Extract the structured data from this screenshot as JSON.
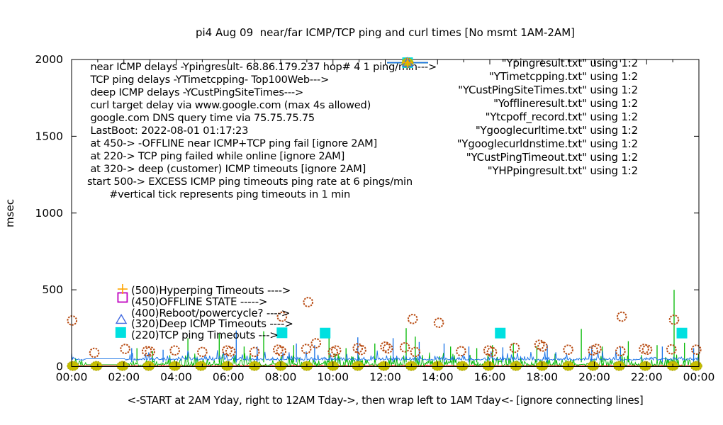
{
  "title": "pi4 Aug 09  near/far ICMP/TCP ping and curl times [No msmt 1AM-2AM]",
  "ylabel": "msec",
  "xlabel": "<-START at 2AM Yday, right to 12AM Tday->, then wrap left to 1AM Tday<- [ignore connecting lines]",
  "annotations": {
    "lines": [
      " near ICMP delays -Ypingresult- 68.86.179.237 hop# 4 1 ping/min--->",
      " TCP ping delays -YTimetcpping- Top100Web--->",
      " deep ICMP delays -YCustPingSiteTimes--->",
      " curl target delay via www.google.com (max 4s allowed)",
      " google.com DNS query time via 75.75.75.75",
      " LastBoot: 2022-08-01 01:17:23",
      " at 450-> -OFFLINE near ICMP+TCP ping fail [ignore 2AM]",
      " at 220-> TCP ping failed while online [ignore 2AM]",
      " at 320-> deep (customer) ICMP timeouts [ignore 2AM]",
      "start 500-> EXCESS ICMP ping timeouts ping rate at 6 pings/min",
      "       #vertical tick represents ping timeouts in 1 min"
    ]
  },
  "legend": {
    "entries": [
      {
        "label": "\"Ypingresult.txt\" using 1:2",
        "sample": "line",
        "color": "#ff0000"
      },
      {
        "label": "\"YTimetcpping.txt\" using 1:2",
        "sample": "line",
        "color": "#00b800"
      },
      {
        "label": "\"YCustPingSiteTimes.txt\" using 1:2",
        "sample": "line",
        "color": "#1470e6"
      },
      {
        "label": "\"Yofflineresult.txt\" using 1:2",
        "sample": "square-open",
        "color": "#bf00bf"
      },
      {
        "label": "\"Ytcpoff_record.txt\" using 1:2",
        "sample": "square-filled",
        "color": "#00e0e0"
      },
      {
        "label": "\"Ygooglecurltime.txt\" using 1:2",
        "sample": "circle-open",
        "color": "#b84a10"
      },
      {
        "label": "\"Ygooglecurldnstime.txt\" using 1:2",
        "sample": "circle-filled",
        "color": "#c6be00"
      },
      {
        "label": "\"YCustPingTimeout.txt\" using 1:2",
        "sample": "triangle-open",
        "color": "#4169e1"
      },
      {
        "label": "\"YHPpingresult.txt\" using 1:2",
        "sample": "plus",
        "color": "#ffa500"
      }
    ]
  },
  "plot_annotations": [
    {
      "text": "(500)Hyperping Timeouts ---->",
      "marker_value": 500,
      "marker": "plus",
      "color": "#ffa500"
    },
    {
      "text": "(450)OFFLINE STATE ----->",
      "marker_value": 450,
      "marker": "square-open",
      "color": "#bf00bf"
    },
    {
      "text": "(400)Reboot/powercycle? ---->",
      "marker_value": 400,
      "marker": "none",
      "color": "#000000"
    },
    {
      "text": "(320)Deep ICMP Timeouts ---->",
      "marker_value": 320,
      "marker": "triangle-open",
      "color": "#4169e1"
    },
    {
      "text": "(220)TCP ping Timeouts --->",
      "marker_value": 220,
      "marker": "square-filled",
      "color": "#00e0e0"
    }
  ],
  "chart_data": {
    "type": "line",
    "title": "pi4 Aug 09  near/far ICMP/TCP ping and curl times [No msmt 1AM-2AM]",
    "xlabel": "<-START at 2AM Yday, right to 12AM Tday->, then wrap left to 1AM Tday<- [ignore connecting lines]",
    "ylabel": "msec",
    "x_unit": "hours",
    "x_range": [
      0,
      24
    ],
    "ylim": [
      0,
      2000
    ],
    "x_ticks": [
      "00:00",
      "02:00",
      "04:00",
      "06:00",
      "08:00",
      "10:00",
      "12:00",
      "14:00",
      "16:00",
      "18:00",
      "20:00",
      "22:00",
      "00:00"
    ],
    "y_ticks": [
      0,
      500,
      1000,
      1500,
      2000
    ],
    "grid": false,
    "legend_position": "top-right",
    "no_measurement_gap_hours": [
      0.55,
      2.05
    ],
    "series": [
      {
        "name": "Ypingresult.txt",
        "role": "near ICMP ping delay",
        "style": "line",
        "color": "#ff0000",
        "noise": {
          "seed": 11,
          "base": 3,
          "jitter": 8,
          "tall_chance": 0,
          "tall_amp": 0
        },
        "gap_level": 8,
        "spikes": []
      },
      {
        "name": "YTimetcpping.txt",
        "role": "TCP ping delay Top100Web",
        "style": "line",
        "color": "#00b800",
        "noise": {
          "seed": 23,
          "base": 1,
          "jitter": 46,
          "tall_chance": 0.12,
          "tall_amp": 70
        },
        "gap_level": 12,
        "spikes": [
          [
            2.5,
            120
          ],
          [
            3.1,
            100
          ],
          [
            4.45,
            185
          ],
          [
            5.65,
            215
          ],
          [
            6.6,
            130
          ],
          [
            7.35,
            230
          ],
          [
            8.5,
            140
          ],
          [
            9.85,
            205
          ],
          [
            10.5,
            120
          ],
          [
            11.6,
            150
          ],
          [
            12.8,
            250
          ],
          [
            13.15,
            195
          ],
          [
            14.5,
            130
          ],
          [
            15.5,
            120
          ],
          [
            16.1,
            140
          ],
          [
            16.9,
            155
          ],
          [
            17.8,
            130
          ],
          [
            19.5,
            245
          ],
          [
            20.3,
            130
          ],
          [
            21.3,
            165
          ],
          [
            22.4,
            140
          ],
          [
            23.05,
            500
          ],
          [
            23.45,
            155
          ]
        ]
      },
      {
        "name": "YCustPingSiteTimes.txt",
        "role": "deep ICMP ping delay",
        "style": "line",
        "color": "#1470e6",
        "noise": {
          "seed": 37,
          "base": 41,
          "jitter": 20,
          "tall_chance": 0.09,
          "tall_amp": 55
        },
        "gap_level": 51,
        "spikes": [
          [
            2.3,
            120
          ],
          [
            3.5,
            110
          ],
          [
            6.3,
            235
          ],
          [
            7.1,
            130
          ],
          [
            8.6,
            150
          ],
          [
            9.3,
            140
          ],
          [
            10.95,
            190
          ],
          [
            12.3,
            185
          ],
          [
            13.3,
            160
          ],
          [
            14.25,
            150
          ],
          [
            15.2,
            130
          ],
          [
            16.5,
            125
          ],
          [
            18.2,
            140
          ],
          [
            19.9,
            130
          ],
          [
            21.0,
            125
          ],
          [
            22.6,
            130
          ],
          [
            23.8,
            120
          ]
        ]
      },
      {
        "name": "Yofflineresult.txt",
        "role": "offline state marker (450)",
        "style": "points",
        "marker": "square-open",
        "color": "#bf00bf",
        "points": [
          [
            1.95,
            450
          ]
        ]
      },
      {
        "name": "Ytcpoff_record.txt",
        "role": "TCP ping failed while online (220)",
        "style": "points",
        "marker": "square-filled",
        "color": "#00e0e0",
        "points": [
          [
            1.88,
            222
          ],
          [
            8.05,
            220
          ],
          [
            9.7,
            218
          ],
          [
            16.4,
            218
          ],
          [
            23.35,
            218
          ]
        ]
      },
      {
        "name": "Ygooglecurltime.txt",
        "role": "curl time to www.google.com",
        "style": "points",
        "marker": "circle-open",
        "color": "#b84a10",
        "points": [
          [
            0.02,
            300
          ],
          [
            0.87,
            90
          ],
          [
            2.05,
            115
          ],
          [
            2.88,
            100
          ],
          [
            3.0,
            98
          ],
          [
            3.95,
            105
          ],
          [
            5.0,
            95
          ],
          [
            5.95,
            105
          ],
          [
            6.08,
            98
          ],
          [
            7.0,
            95
          ],
          [
            7.9,
            110
          ],
          [
            8.02,
            100
          ],
          [
            8.05,
            325
          ],
          [
            8.98,
            115
          ],
          [
            9.05,
            420
          ],
          [
            9.35,
            152
          ],
          [
            10.0,
            95
          ],
          [
            10.12,
            105
          ],
          [
            10.95,
            120
          ],
          [
            11.08,
            108
          ],
          [
            12.0,
            130
          ],
          [
            12.1,
            118
          ],
          [
            12.75,
            125
          ],
          [
            13.05,
            310
          ],
          [
            13.15,
            95
          ],
          [
            14.05,
            285
          ],
          [
            14.9,
            100
          ],
          [
            15.95,
            105
          ],
          [
            16.08,
            95
          ],
          [
            16.95,
            122
          ],
          [
            17.9,
            142
          ],
          [
            18.02,
            130
          ],
          [
            19.0,
            110
          ],
          [
            19.95,
            105
          ],
          [
            20.08,
            115
          ],
          [
            21.0,
            100
          ],
          [
            21.05,
            325
          ],
          [
            21.9,
            115
          ],
          [
            22.02,
            110
          ],
          [
            22.95,
            112
          ],
          [
            23.05,
            305
          ],
          [
            23.9,
            110
          ]
        ]
      },
      {
        "name": "Ygooglecurldnstime.txt",
        "role": "google.com DNS query time via 75.75.75.75",
        "style": "points",
        "marker": "circle-filled",
        "color": "#c6be00",
        "points": [
          [
            0.05,
            4
          ],
          [
            0.95,
            4
          ],
          [
            1.95,
            4
          ],
          [
            2.95,
            4
          ],
          [
            3.95,
            4
          ],
          [
            4.95,
            4
          ],
          [
            5.95,
            4
          ],
          [
            7.0,
            4
          ],
          [
            8.0,
            4
          ],
          [
            9.0,
            4
          ],
          [
            10.0,
            4
          ],
          [
            10.95,
            4
          ],
          [
            11.95,
            4
          ],
          [
            13.0,
            4
          ],
          [
            14.0,
            4
          ],
          [
            14.95,
            4
          ],
          [
            15.95,
            4
          ],
          [
            17.0,
            4
          ],
          [
            18.0,
            4
          ],
          [
            19.0,
            4
          ],
          [
            19.95,
            4
          ],
          [
            20.95,
            4
          ],
          [
            21.95,
            4
          ],
          [
            23.0,
            4
          ],
          [
            23.9,
            4
          ]
        ]
      },
      {
        "name": "YCustPingTimeout.txt",
        "role": "deep ICMP timeout marker (320)",
        "style": "points",
        "marker": "triangle-open",
        "color": "#4169e1",
        "points": [
          [
            1.9,
            305
          ]
        ]
      },
      {
        "name": "YHPpingresult.txt",
        "role": "excess hyperping timeout marker (500)",
        "style": "points",
        "marker": "plus",
        "color": "#ffa500",
        "points": [
          [
            1.95,
            505
          ]
        ]
      }
    ]
  }
}
